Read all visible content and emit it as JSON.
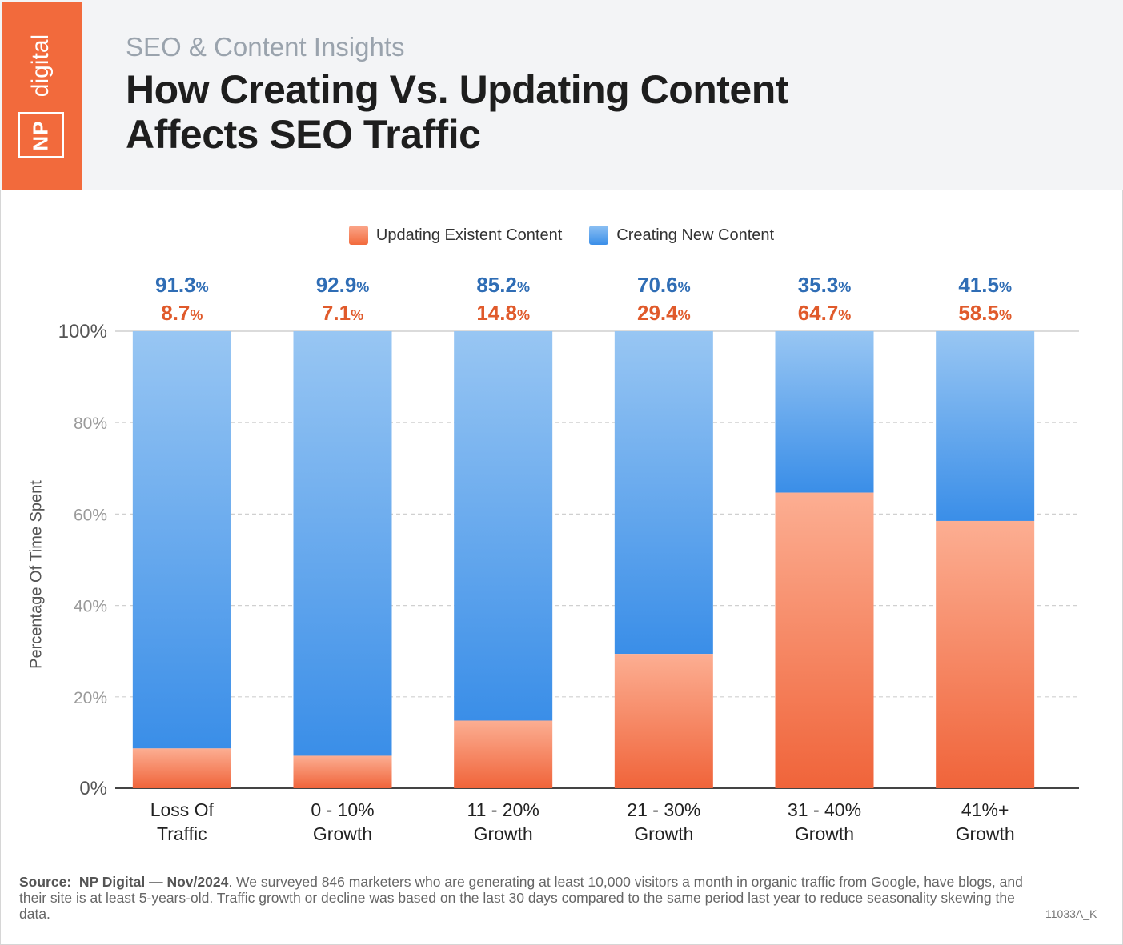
{
  "header": {
    "logo_np": "NP",
    "logo_digital": "digital",
    "subtitle": "SEO & Content Insights",
    "title_line1": "How Creating Vs. Updating Content",
    "title_line2": "Affects SEO Traffic"
  },
  "colors": {
    "updating": "#f26a3c",
    "creating": "#3a8ee8",
    "header_bg": "#f3f4f6"
  },
  "chart_data": {
    "type": "bar",
    "stacked": true,
    "categories": [
      [
        "Loss Of",
        "Traffic"
      ],
      [
        "0 - 10%",
        "Growth"
      ],
      [
        "11 - 20%",
        "Growth"
      ],
      [
        "21 - 30%",
        "Growth"
      ],
      [
        "31 - 40%",
        "Growth"
      ],
      [
        "41%+",
        "Growth"
      ]
    ],
    "series": [
      {
        "name": "Updating Existent Content",
        "values": [
          8.7,
          7.1,
          14.8,
          29.4,
          64.7,
          58.5
        ]
      },
      {
        "name": "Creating New Content",
        "values": [
          91.3,
          92.9,
          85.2,
          70.6,
          35.3,
          41.5
        ]
      }
    ],
    "value_labels": {
      "updating": [
        "8.7",
        "7.1",
        "14.8",
        "29.4",
        "64.7",
        "58.5"
      ],
      "creating": [
        "91.3",
        "92.9",
        "85.2",
        "70.6",
        "35.3",
        "41.5"
      ],
      "suffix": "%"
    },
    "ylabel": "Percentage Of Time Spent",
    "ylim": [
      0,
      100
    ],
    "yticks": [
      0,
      20,
      40,
      60,
      80,
      100
    ],
    "ytick_labels": [
      "0%",
      "20%",
      "40%",
      "60%",
      "80%",
      "100%"
    ],
    "grid": true,
    "legend": "top-center"
  },
  "footer": {
    "source_label": "Source:",
    "source_org": "NP Digital — Nov/2024",
    "source_text": ". We surveyed 846 marketers who are generating at least 10,000 visitors a month in organic traffic from Google, have blogs, and their site is at least 5-years-old. Traffic growth or decline was based on the last 30 days compared to the same period last year to reduce seasonality skewing the data.",
    "code": "11033A_K"
  }
}
